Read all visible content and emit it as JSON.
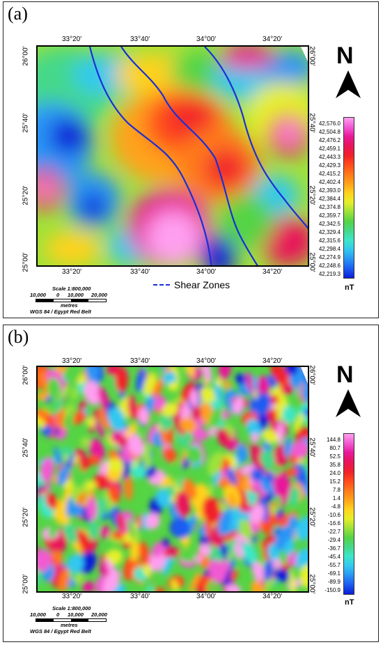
{
  "panel_a": {
    "label": "(a)",
    "lon_ticks": [
      "33°20'",
      "33°40'",
      "34°00'",
      "34°20'"
    ],
    "lat_ticks": [
      "26°00'",
      "25°40'",
      "25°20'",
      "25°00'"
    ],
    "north": "N",
    "legend_values": [
      "42,576.0",
      "42,504.8",
      "42,476.2",
      "42,459.1",
      "42,443.3",
      "42,429.3",
      "42,415.2",
      "42,402.4",
      "42,393.0",
      "42,384.4",
      "42,374.8",
      "42,359.7",
      "42,342.5",
      "42,329.4",
      "42,315.6",
      "42,298.4",
      "42,274.9",
      "42,248.6",
      "42,219.3"
    ],
    "unit": "nT",
    "shear_label": "Shear Zones",
    "shear_color": "#1a2fd6"
  },
  "panel_b": {
    "label": "(b)",
    "lon_ticks": [
      "33°20'",
      "33°40'",
      "34°00'",
      "34°20'"
    ],
    "lat_ticks": [
      "26°00'",
      "25°40'",
      "25°20'",
      "25°00'"
    ],
    "north": "N",
    "legend_values": [
      "144.8",
      "80.7",
      "52.5",
      "35.8",
      "24.0",
      "15.2",
      "7.8",
      "1.4",
      "-4.8",
      "-10.6",
      "-16.6",
      "-22.7",
      "-29.4",
      "-36.7",
      "-45.4",
      "-55.7",
      "-69.1",
      "-89.9",
      "-150.9"
    ],
    "unit": "nT"
  },
  "scale": {
    "title": "Scale 1:800,000",
    "ticks": [
      "10,000",
      "0",
      "10,000",
      "20,000"
    ],
    "units": "metres",
    "projection": "WGS 84 / Egypt Red Belt"
  },
  "colormap": [
    "#0b1fd8",
    "#1c5cf0",
    "#2a95f5",
    "#33c8f0",
    "#3ee6c8",
    "#45d88a",
    "#55d444",
    "#9ee23a",
    "#e6ef2a",
    "#ffd21f",
    "#ffa21a",
    "#ff7a1a",
    "#ff4b1c",
    "#f2202a",
    "#e8155a",
    "#e8189a",
    "#f25ad2",
    "#ff9ff0"
  ]
}
